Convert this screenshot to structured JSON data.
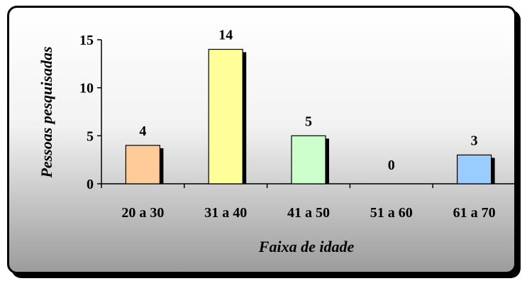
{
  "chart_data": {
    "type": "bar",
    "categories": [
      "20 a 30",
      "31 a 40",
      "41 a 50",
      "51 a 60",
      "61 a 70"
    ],
    "values": [
      4,
      14,
      5,
      0,
      3
    ],
    "data_labels": [
      "4",
      "14",
      "5",
      "0",
      "3"
    ],
    "bar_colors": [
      "#ffcc99",
      "#ffff99",
      "#ccffcc",
      "#cccccc",
      "#99ccff"
    ],
    "xlabel": "Faixa de idade",
    "ylabel": "Pessoas pesquisadas",
    "ylim": [
      0,
      15
    ],
    "yticks": [
      "0",
      "5",
      "10",
      "15"
    ],
    "grid": false,
    "legend": "none"
  }
}
